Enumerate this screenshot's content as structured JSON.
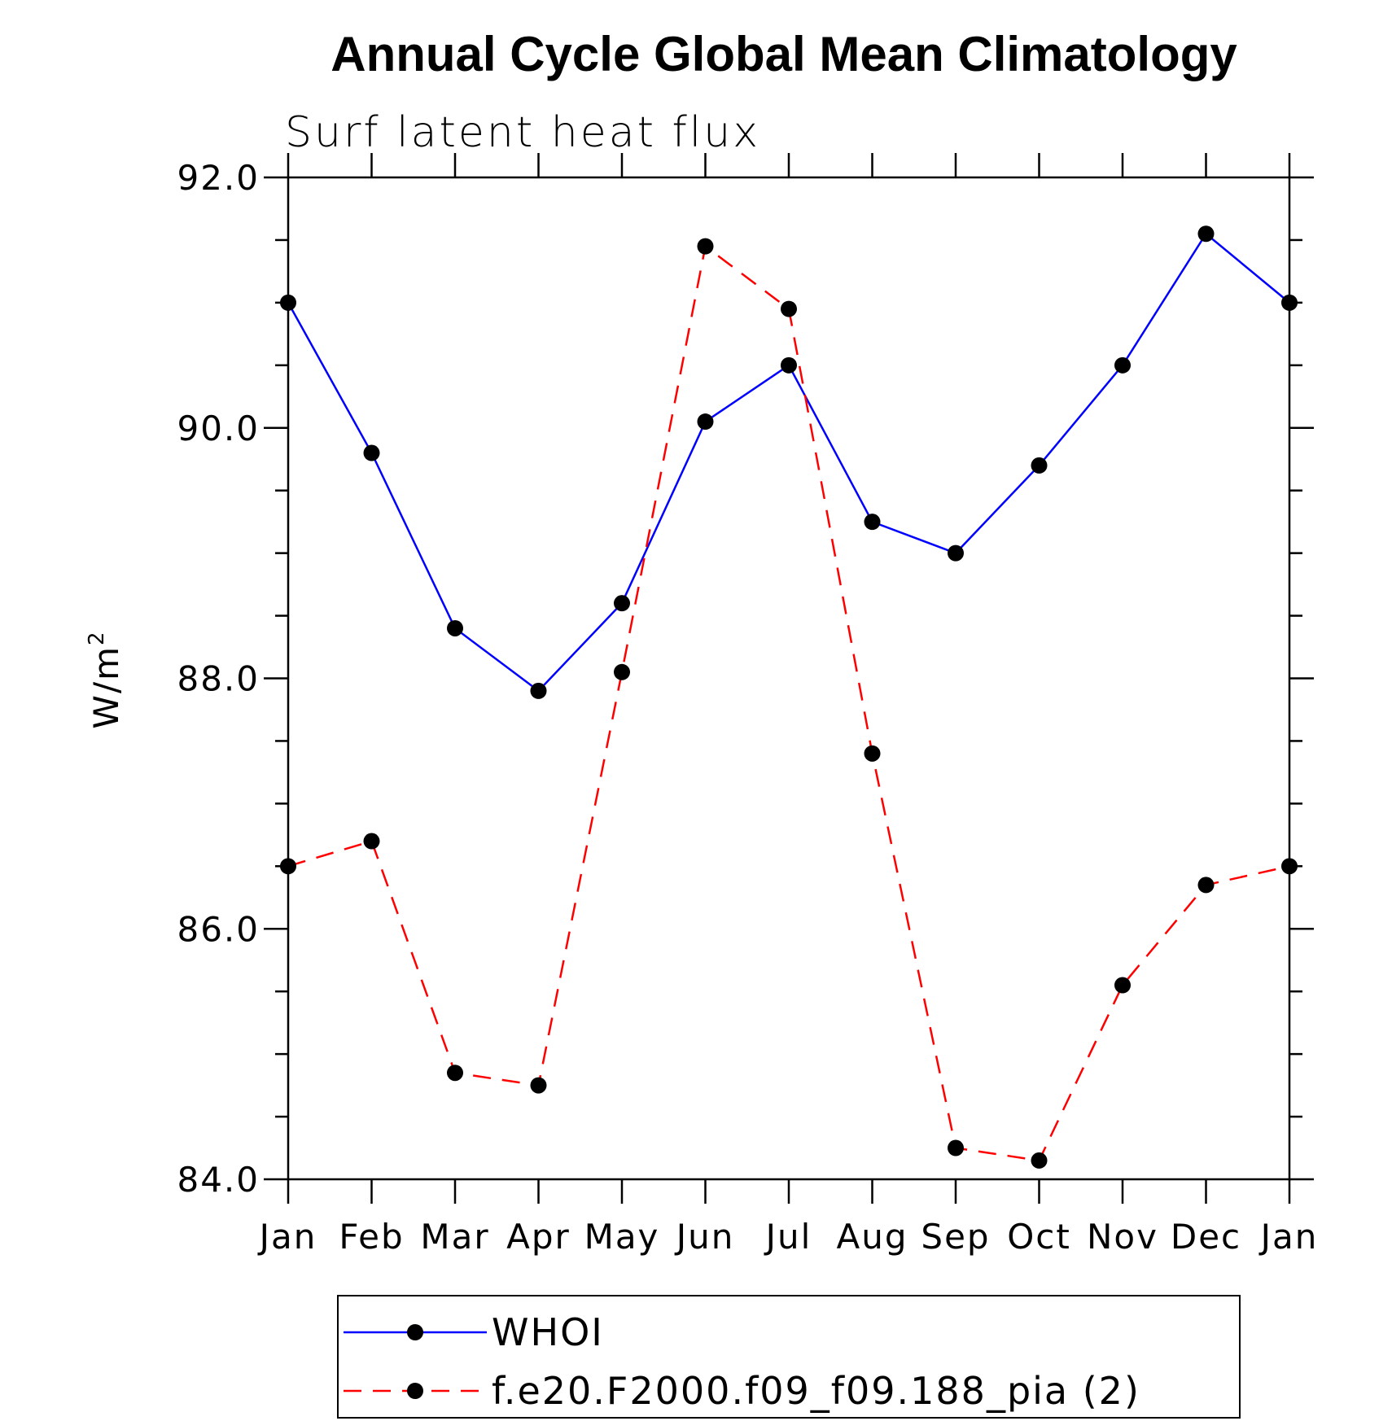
{
  "chart_data": {
    "type": "line",
    "title": "Annual Cycle Global Mean Climatology",
    "subtitle": "Surf latent heat flux",
    "xlabel": "",
    "ylabel": "W/m",
    "ylabel_superscript": "2",
    "ylim": [
      84.0,
      92.0
    ],
    "yticks": [
      "84.0",
      "86.0",
      "88.0",
      "90.0",
      "92.0"
    ],
    "yticks_values": [
      84,
      86,
      88,
      90,
      92
    ],
    "categories": [
      "Jan",
      "Feb",
      "Mar",
      "Apr",
      "May",
      "Jun",
      "Jul",
      "Aug",
      "Sep",
      "Oct",
      "Nov",
      "Dec",
      "Jan"
    ],
    "legend_position": "bottom",
    "series": [
      {
        "name": "WHOI",
        "color": "#0000ff",
        "dash": "solid",
        "marker": "circle",
        "values": [
          91.0,
          89.8,
          88.4,
          87.9,
          88.6,
          90.05,
          90.5,
          89.25,
          89.0,
          89.7,
          90.5,
          91.55,
          91.0
        ]
      },
      {
        "name": "f.e20.F2000.f09_f09.188_pia (2)",
        "color": "#ff0000",
        "dash": "dashed",
        "marker": "circle",
        "values": [
          86.5,
          86.7,
          84.85,
          84.75,
          88.05,
          91.45,
          90.95,
          87.4,
          84.25,
          84.15,
          85.55,
          86.35,
          86.5
        ]
      }
    ]
  }
}
